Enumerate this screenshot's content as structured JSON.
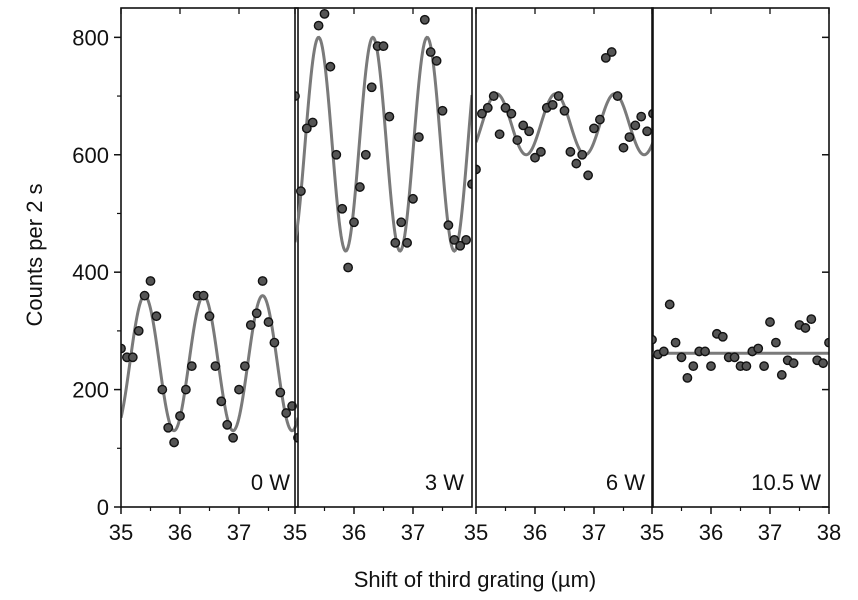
{
  "chart_data": {
    "type": "scatter",
    "ylabel": "Counts per 2 s",
    "xlabel": "Shift of third grating (µm)",
    "ylim": [
      0,
      850
    ],
    "yticks": [
      0,
      200,
      400,
      600,
      800
    ],
    "grid": false,
    "colors": {
      "fit_line": "#7a7a7a",
      "marker_fill": "#555555",
      "marker_stroke": "#111111",
      "axis": "#111111"
    },
    "panels": [
      {
        "label": "0 W",
        "xlim": [
          35,
          38
        ],
        "xticks": [
          35,
          36,
          37
        ],
        "points": [
          [
            35.0,
            270
          ],
          [
            35.1,
            255
          ],
          [
            35.2,
            255
          ],
          [
            35.3,
            300
          ],
          [
            35.4,
            360
          ],
          [
            35.5,
            385
          ],
          [
            35.6,
            325
          ],
          [
            35.7,
            200
          ],
          [
            35.8,
            135
          ],
          [
            35.9,
            110
          ],
          [
            36.0,
            155
          ],
          [
            36.1,
            200
          ],
          [
            36.2,
            240
          ],
          [
            36.3,
            360
          ],
          [
            36.4,
            360
          ],
          [
            36.5,
            325
          ],
          [
            36.6,
            240
          ],
          [
            36.7,
            180
          ],
          [
            36.8,
            140
          ],
          [
            36.9,
            118
          ],
          [
            37.0,
            200
          ],
          [
            37.1,
            240
          ],
          [
            37.2,
            310
          ],
          [
            37.3,
            330
          ],
          [
            37.4,
            385
          ],
          [
            37.5,
            315
          ],
          [
            37.6,
            280
          ],
          [
            37.7,
            195
          ],
          [
            37.8,
            160
          ],
          [
            37.9,
            172
          ],
          [
            38.0,
            118
          ]
        ],
        "fit": {
          "mean": 245,
          "amplitude": 115,
          "period": 1.0,
          "phase_x": 35.4
        }
      },
      {
        "label": "3 W",
        "xlim": [
          35,
          38
        ],
        "xticks": [
          35,
          36,
          37
        ],
        "points": [
          [
            35.0,
            700
          ],
          [
            35.1,
            538
          ],
          [
            35.2,
            645
          ],
          [
            35.3,
            655
          ],
          [
            35.4,
            820
          ],
          [
            35.5,
            840
          ],
          [
            35.6,
            750
          ],
          [
            35.7,
            600
          ],
          [
            35.8,
            508
          ],
          [
            35.9,
            408
          ],
          [
            36.0,
            485
          ],
          [
            36.1,
            545
          ],
          [
            36.2,
            600
          ],
          [
            36.3,
            715
          ],
          [
            36.4,
            785
          ],
          [
            36.5,
            785
          ],
          [
            36.6,
            665
          ],
          [
            36.7,
            450
          ],
          [
            36.8,
            485
          ],
          [
            36.9,
            450
          ],
          [
            37.0,
            525
          ],
          [
            37.1,
            630
          ],
          [
            37.2,
            830
          ],
          [
            37.3,
            775
          ],
          [
            37.4,
            760
          ],
          [
            37.5,
            675
          ],
          [
            37.6,
            480
          ],
          [
            37.7,
            455
          ],
          [
            37.8,
            445
          ],
          [
            37.9,
            455
          ],
          [
            38.0,
            550
          ]
        ],
        "fit": {
          "mean": 618,
          "amplitude": 182,
          "period": 0.92,
          "phase_x": 35.4
        }
      },
      {
        "label": "6 W",
        "xlim": [
          35,
          38
        ],
        "xticks": [
          35,
          36,
          37
        ],
        "points": [
          [
            35.0,
            575
          ],
          [
            35.1,
            670
          ],
          [
            35.2,
            680
          ],
          [
            35.3,
            700
          ],
          [
            35.4,
            635
          ],
          [
            35.5,
            680
          ],
          [
            35.6,
            670
          ],
          [
            35.7,
            625
          ],
          [
            35.8,
            650
          ],
          [
            35.9,
            640
          ],
          [
            36.0,
            595
          ],
          [
            36.1,
            605
          ],
          [
            36.2,
            680
          ],
          [
            36.3,
            685
          ],
          [
            36.4,
            700
          ],
          [
            36.5,
            675
          ],
          [
            36.6,
            605
          ],
          [
            36.7,
            585
          ],
          [
            36.8,
            600
          ],
          [
            36.9,
            565
          ],
          [
            37.0,
            645
          ],
          [
            37.1,
            660
          ],
          [
            37.2,
            765
          ],
          [
            37.3,
            775
          ],
          [
            37.4,
            700
          ],
          [
            37.5,
            612
          ],
          [
            37.6,
            630
          ],
          [
            37.7,
            650
          ],
          [
            37.8,
            665
          ],
          [
            37.9,
            640
          ],
          [
            38.0,
            670
          ]
        ],
        "fit": {
          "mean": 652,
          "amplitude": 52,
          "period": 1.0,
          "phase_x": 35.35
        }
      },
      {
        "label": "10.5 W",
        "xlim": [
          35,
          38
        ],
        "xticks": [
          35,
          36,
          37,
          38
        ],
        "points": [
          [
            35.0,
            285
          ],
          [
            35.1,
            260
          ],
          [
            35.2,
            265
          ],
          [
            35.3,
            345
          ],
          [
            35.4,
            280
          ],
          [
            35.5,
            255
          ],
          [
            35.6,
            220
          ],
          [
            35.7,
            240
          ],
          [
            35.8,
            265
          ],
          [
            35.9,
            265
          ],
          [
            36.0,
            240
          ],
          [
            36.1,
            295
          ],
          [
            36.2,
            290
          ],
          [
            36.3,
            255
          ],
          [
            36.4,
            255
          ],
          [
            36.5,
            240
          ],
          [
            36.6,
            240
          ],
          [
            36.7,
            265
          ],
          [
            36.8,
            270
          ],
          [
            36.9,
            240
          ],
          [
            37.0,
            315
          ],
          [
            37.1,
            280
          ],
          [
            37.2,
            225
          ],
          [
            37.3,
            250
          ],
          [
            37.4,
            245
          ],
          [
            37.5,
            310
          ],
          [
            37.6,
            305
          ],
          [
            37.7,
            320
          ],
          [
            37.8,
            250
          ],
          [
            37.9,
            245
          ],
          [
            38.0,
            280
          ]
        ],
        "fit": {
          "mean": 262,
          "amplitude": 0,
          "period": 1.0,
          "phase_x": 35.0
        }
      }
    ]
  }
}
